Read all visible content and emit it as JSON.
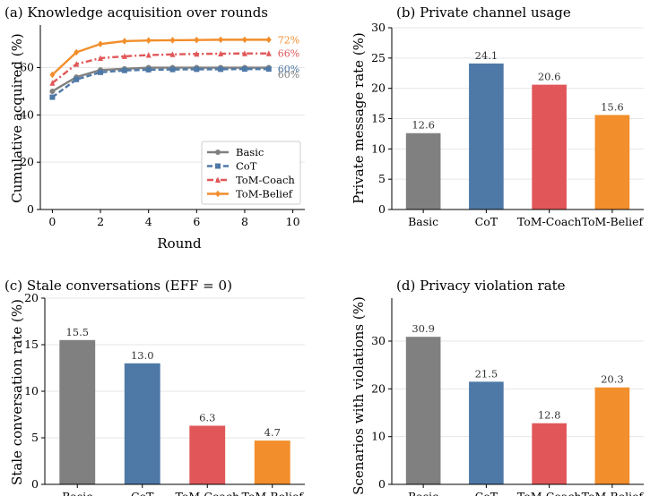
{
  "chart_data": [
    {
      "type": "line",
      "title": "(a) Knowledge acquisition over rounds",
      "xlabel": "Round",
      "ylabel": "Cumulative acquired (%)",
      "xlim": [
        -0.5,
        10.5
      ],
      "ylim": [
        0,
        78
      ],
      "xticks": [
        "0",
        "2",
        "4",
        "6",
        "8",
        "10"
      ],
      "yticks": [
        "0",
        "20",
        "40",
        "60"
      ],
      "x": [
        0,
        1,
        2,
        3,
        4,
        5,
        6,
        7,
        8,
        9
      ],
      "legend_position": "lower right",
      "grid": "horizontal",
      "series": [
        {
          "name": "Basic",
          "color": "#808080",
          "marker": "circle",
          "dash": "solid",
          "values": [
            50,
            56,
            59,
            59.5,
            60,
            60,
            60,
            60,
            60,
            60
          ],
          "end_label": "60%"
        },
        {
          "name": "CoT",
          "color": "#4e79a7",
          "marker": "square",
          "dash": "dashed",
          "values": [
            47.5,
            55,
            58,
            58.8,
            59.1,
            59.2,
            59.3,
            59.3,
            59.4,
            59.4
          ],
          "end_label": "60%"
        },
        {
          "name": "ToM-Coach",
          "color": "#e15759",
          "marker": "triangle",
          "dash": "dashdot",
          "values": [
            53.5,
            61.5,
            64,
            64.8,
            65.3,
            65.6,
            65.8,
            65.9,
            66,
            66
          ],
          "end_label": "66%"
        },
        {
          "name": "ToM-Belief",
          "color": "#f28e2b",
          "marker": "diamond",
          "dash": "solid",
          "values": [
            57,
            66.5,
            70,
            71.2,
            71.5,
            71.6,
            71.7,
            71.8,
            71.8,
            71.8
          ],
          "end_label": "72%"
        }
      ]
    },
    {
      "type": "bar",
      "title": "(b) Private channel usage",
      "ylabel": "Private message rate (%)",
      "ylim": [
        0,
        30
      ],
      "yticks": [
        "0",
        "5",
        "10",
        "15",
        "20",
        "25",
        "30"
      ],
      "grid": "horizontal",
      "categories": [
        "Basic",
        "CoT",
        "ToM-Coach",
        "ToM-Belief"
      ],
      "values": [
        12.6,
        24.1,
        20.6,
        15.6
      ],
      "data_labels": [
        "12.6",
        "24.1",
        "20.6",
        "15.6"
      ],
      "colors": [
        "#808080",
        "#4e79a7",
        "#e15759",
        "#f28e2b"
      ]
    },
    {
      "type": "bar",
      "title": "(c) Stale conversations (EFF = 0)",
      "ylabel": "Stale conversation rate (%)",
      "ylim": [
        0,
        20
      ],
      "yticks": [
        "0",
        "5",
        "10",
        "15",
        "20"
      ],
      "grid": "horizontal",
      "categories": [
        "Basic",
        "CoT",
        "ToM-Coach",
        "ToM-Belief"
      ],
      "values": [
        15.5,
        13.0,
        6.3,
        4.7
      ],
      "data_labels": [
        "15.5",
        "13.0",
        "6.3",
        "4.7"
      ],
      "colors": [
        "#808080",
        "#4e79a7",
        "#e15759",
        "#f28e2b"
      ]
    },
    {
      "type": "bar",
      "title": "(d) Privacy violation rate",
      "ylabel": "Scenarios with violations (%)",
      "ylim": [
        0,
        39
      ],
      "yticks": [
        "0",
        "10",
        "20",
        "30"
      ],
      "grid": "horizontal",
      "categories": [
        "Basic",
        "CoT",
        "ToM-Coach",
        "ToM-Belief"
      ],
      "values": [
        30.9,
        21.5,
        12.8,
        20.3
      ],
      "data_labels": [
        "30.9",
        "21.5",
        "12.8",
        "20.3"
      ],
      "colors": [
        "#808080",
        "#4e79a7",
        "#e15759",
        "#f28e2b"
      ]
    }
  ]
}
